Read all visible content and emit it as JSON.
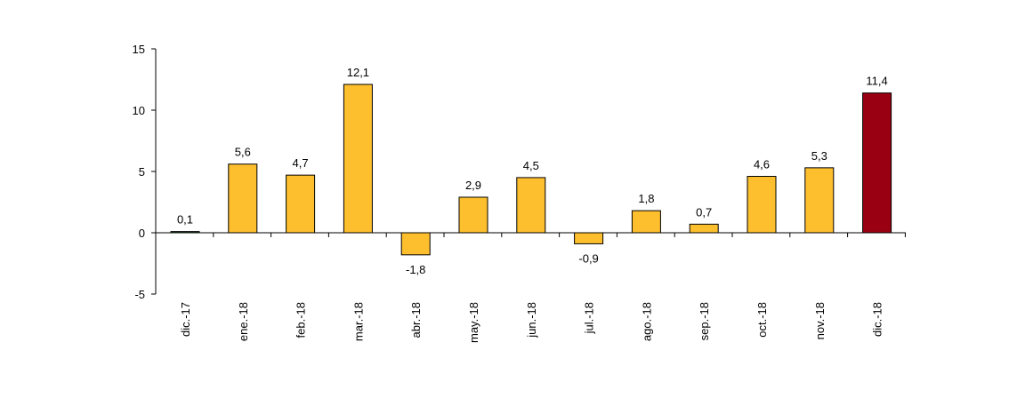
{
  "chart_data": {
    "type": "bar",
    "categories": [
      "dic.-17",
      "ene.-18",
      "feb.-18",
      "mar.-18",
      "abr.-18",
      "may.-18",
      "jun.-18",
      "jul.-18",
      "ago.-18",
      "sep.-18",
      "oct.-18",
      "nov.-18",
      "dic.-18"
    ],
    "values": [
      0.1,
      5.6,
      4.7,
      12.1,
      -1.8,
      2.9,
      4.5,
      -0.9,
      1.8,
      0.7,
      4.6,
      5.3,
      11.4
    ],
    "value_labels": [
      "0,1",
      "5,6",
      "4,7",
      "12,1",
      "-1,8",
      "2,9",
      "4,5",
      "-0,9",
      "1,8",
      "0,7",
      "4,6",
      "5,3",
      "11,4"
    ],
    "ylim": [
      -5,
      15
    ],
    "yticks": [
      -5,
      0,
      5,
      10,
      15
    ],
    "ytick_labels": [
      "-5",
      "0",
      "5",
      "10",
      "15"
    ],
    "grid": false,
    "colors": {
      "bar": "#FDBF2D",
      "bar_highlight": "#990011",
      "bar_first": "#1F5C1F",
      "border": "#000000"
    },
    "highlight_index": 12
  }
}
